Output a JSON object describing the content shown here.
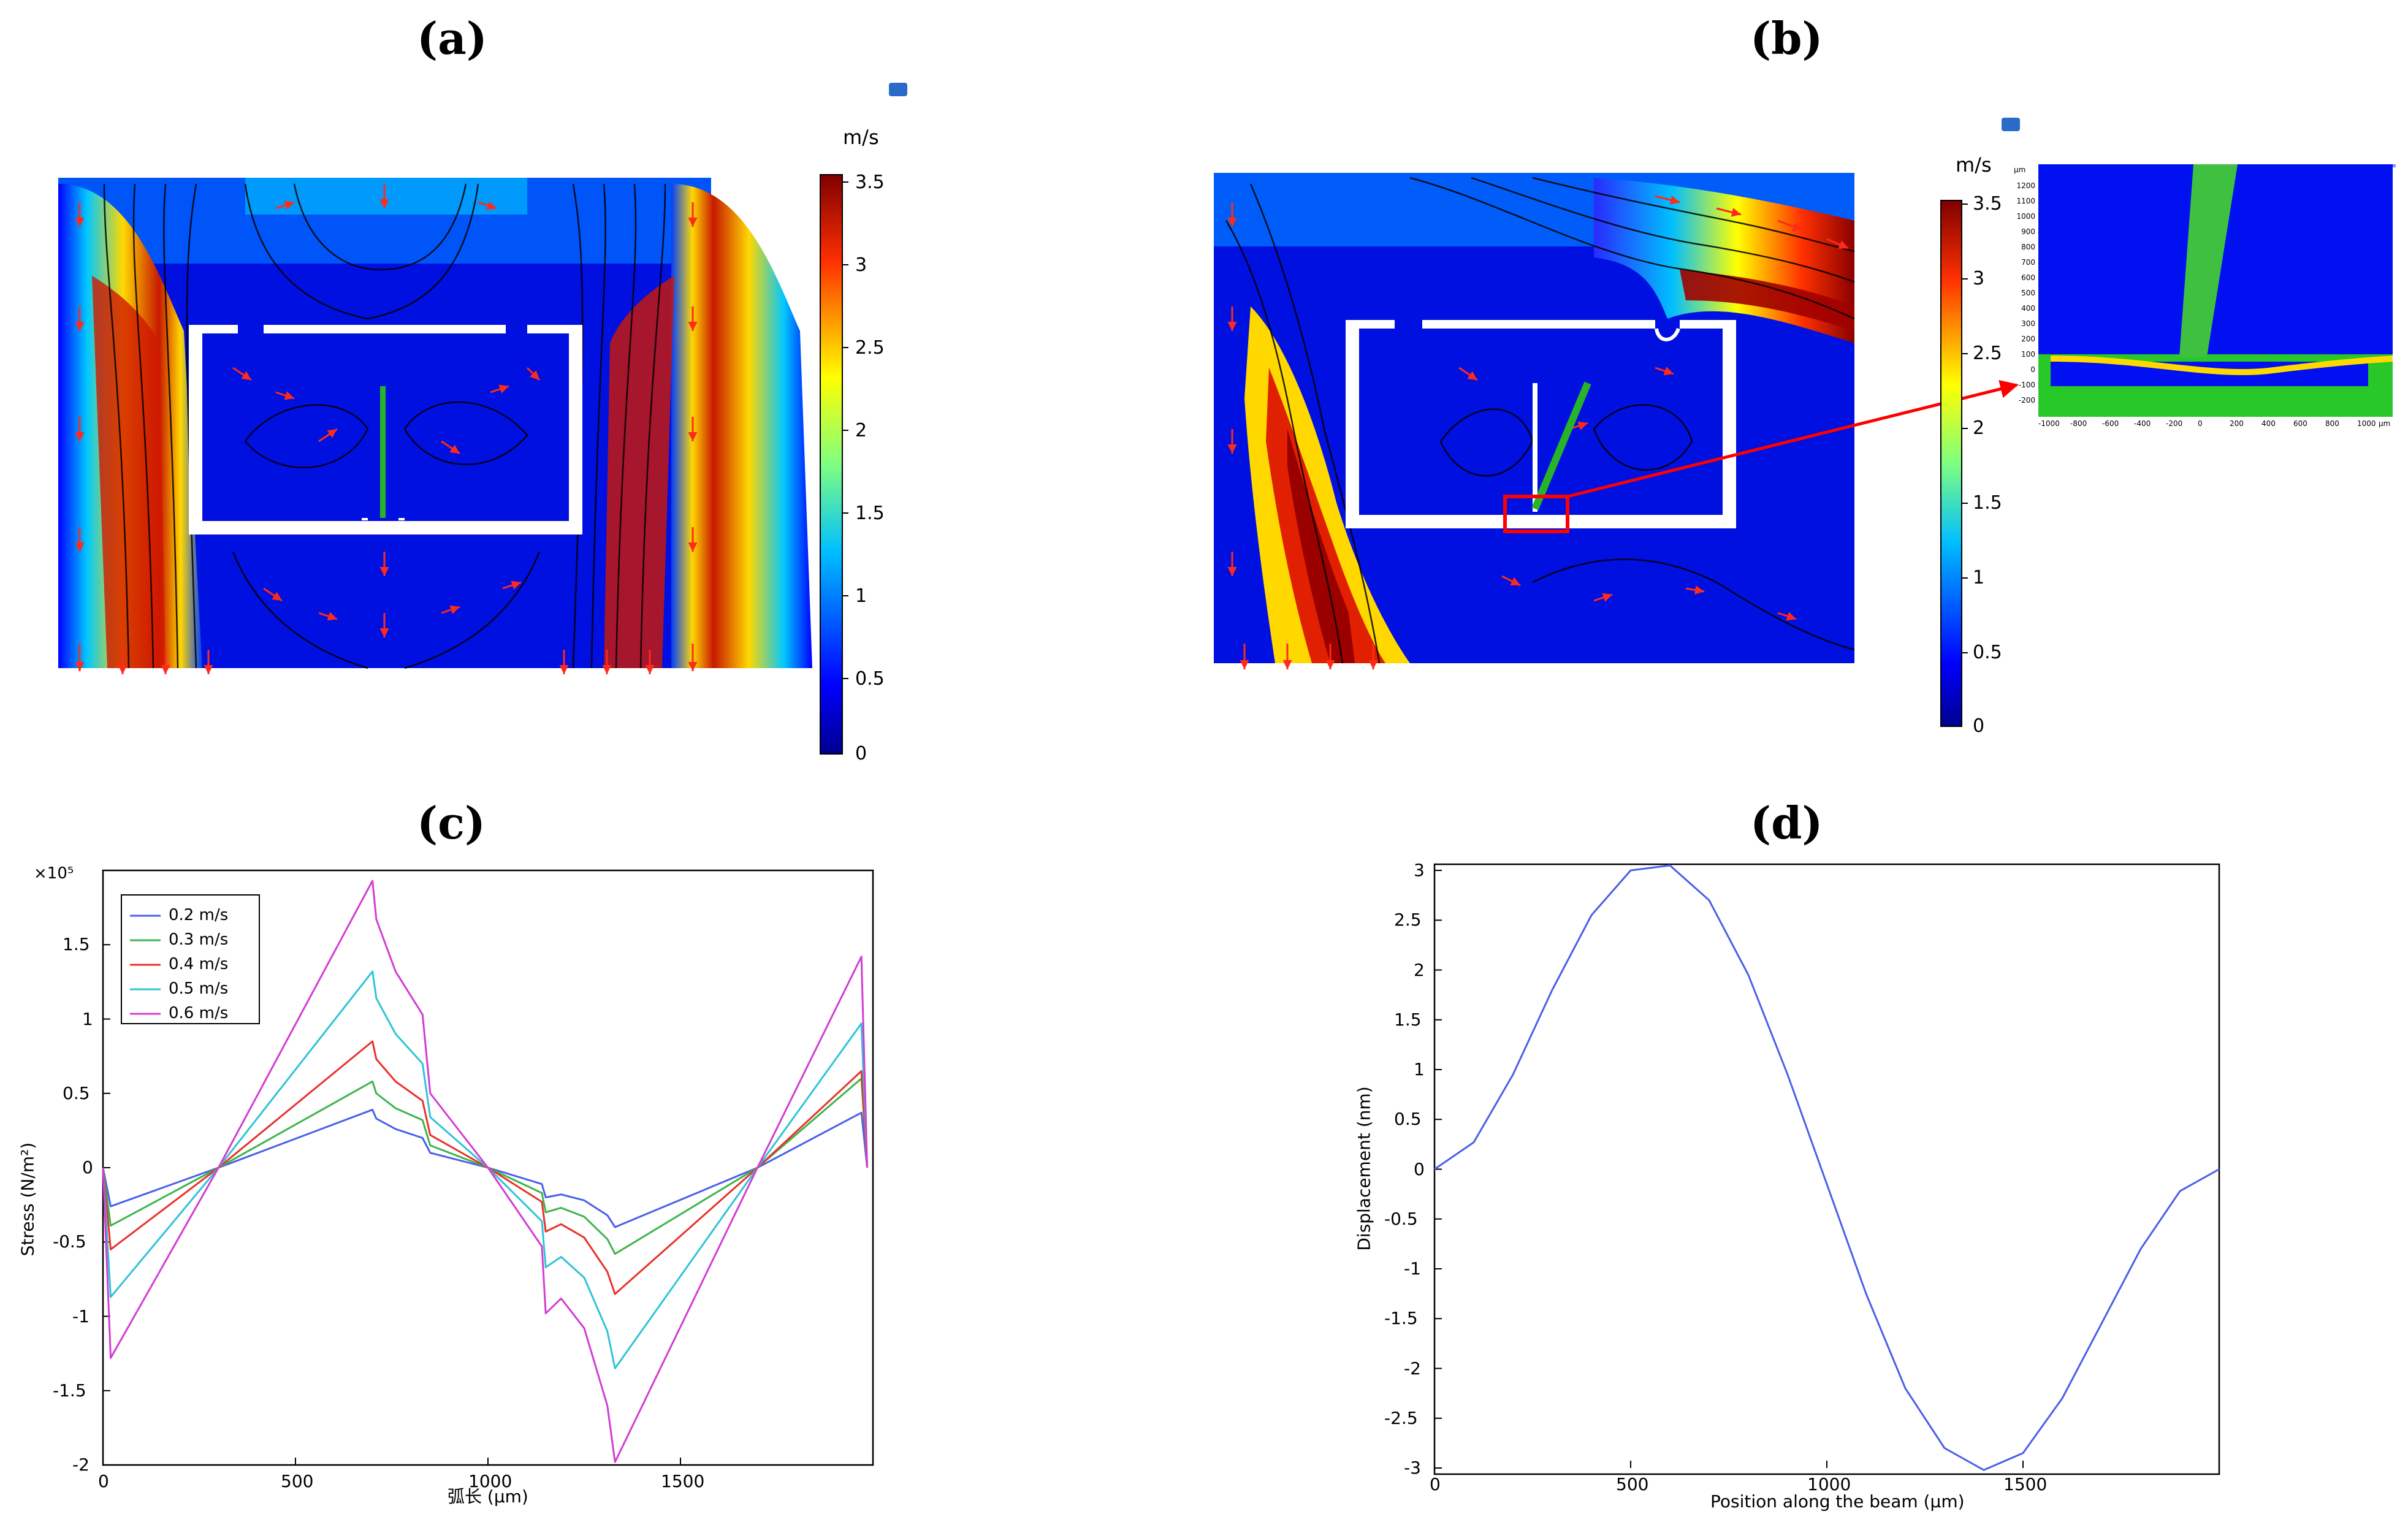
{
  "panels": {
    "a": {
      "label": "(a)"
    },
    "b": {
      "label": "(b)"
    },
    "c": {
      "label": "(c)"
    },
    "d": {
      "label": "(d)"
    }
  },
  "colorbar": {
    "unit": "m/s",
    "ticks": [
      "3.5",
      "3",
      "2.5",
      "2",
      "1.5",
      "1",
      "0.5",
      "0"
    ],
    "min": 0,
    "max": 3.5
  },
  "inset": {
    "unit": "µm",
    "y_ticks": [
      "1200",
      "1100",
      "1000",
      "900",
      "800",
      "700",
      "600",
      "500",
      "400",
      "300",
      "200",
      "100",
      "0",
      "-100",
      "-200"
    ],
    "x_ticks": [
      "-1000",
      "-800",
      "-600",
      "-400",
      "-200",
      "0",
      "200",
      "400",
      "600",
      "800",
      "1000"
    ]
  },
  "colors": {
    "blue": "#4b5fe8",
    "green": "#3cb44b",
    "red": "#e8322b",
    "cyan": "#2ec4d6",
    "magenta": "#d43cd4",
    "arrow": "#ff2a1a",
    "beam": "#28b428"
  },
  "chart_data": [
    {
      "type": "line",
      "title": "",
      "xlabel": "弧长 (µm)",
      "ylabel": "Stress (N/m²)",
      "multiplier": "×10⁵",
      "xlim": [
        0,
        2000
      ],
      "ylim": [
        -2,
        2
      ],
      "x_ticks": [
        0,
        500,
        1000,
        1500
      ],
      "y_ticks": [
        -2,
        -1.5,
        -1,
        -0.5,
        0,
        0.5,
        1,
        1.5
      ],
      "y_tick_labels": [
        "-2",
        "-1.5",
        "-1",
        "-0.5",
        "0",
        "0.5",
        "1",
        "1.5"
      ],
      "legend": "top-left",
      "x": [
        0,
        20,
        300,
        700,
        710,
        760,
        830,
        850,
        1000,
        1140,
        1150,
        1190,
        1250,
        1310,
        1330,
        1700,
        1970,
        1985
      ],
      "series": [
        {
          "name": "0.2 m/s",
          "color_key": "blue",
          "values": [
            0,
            -0.26,
            0,
            0.39,
            0.33,
            0.26,
            0.2,
            0.1,
            0,
            -0.11,
            -0.2,
            -0.18,
            -0.22,
            -0.32,
            -0.4,
            0,
            0.37,
            0
          ]
        },
        {
          "name": "0.3 m/s",
          "color_key": "green",
          "values": [
            0,
            -0.39,
            0,
            0.58,
            0.5,
            0.4,
            0.32,
            0.15,
            0,
            -0.17,
            -0.3,
            -0.27,
            -0.33,
            -0.48,
            -0.58,
            0,
            0.6,
            0
          ]
        },
        {
          "name": "0.4 m/s",
          "color_key": "red",
          "values": [
            0,
            -0.55,
            0,
            0.85,
            0.73,
            0.58,
            0.45,
            0.22,
            0,
            -0.23,
            -0.43,
            -0.38,
            -0.47,
            -0.7,
            -0.85,
            0,
            0.65,
            0
          ]
        },
        {
          "name": "0.5 m/s",
          "color_key": "cyan",
          "values": [
            0,
            -0.87,
            0,
            1.32,
            1.14,
            0.9,
            0.7,
            0.34,
            0,
            -0.36,
            -0.67,
            -0.6,
            -0.74,
            -1.1,
            -1.35,
            0,
            0.97,
            0
          ]
        },
        {
          "name": "0.6 m/s",
          "color_key": "magenta",
          "values": [
            0,
            -1.28,
            0,
            1.93,
            1.67,
            1.32,
            1.03,
            0.5,
            0,
            -0.53,
            -0.98,
            -0.88,
            -1.08,
            -1.6,
            -1.98,
            0,
            1.42,
            0
          ]
        }
      ]
    },
    {
      "type": "line",
      "title": "",
      "xlabel": "Position along the beam (µm)",
      "ylabel": "Displacement (nm)",
      "xlim": [
        0,
        2000
      ],
      "ylim": [
        -3,
        3
      ],
      "x_ticks": [
        0,
        500,
        1000,
        1500
      ],
      "y_ticks": [
        -3,
        -2.5,
        -2,
        -1.5,
        -1,
        -0.5,
        0,
        0.5,
        1,
        1.5,
        2,
        2.5,
        3
      ],
      "y_tick_labels": [
        "-3",
        "-2.5",
        "-2",
        "-1.5",
        "-1",
        "-0.5",
        "0",
        "0.5",
        "1",
        "1.5",
        "2",
        "2.5",
        "3"
      ],
      "legend": "none",
      "x": [
        0,
        100,
        200,
        300,
        400,
        500,
        600,
        700,
        800,
        900,
        1000,
        1100,
        1200,
        1300,
        1400,
        1500,
        1600,
        1700,
        1800,
        1900,
        2000
      ],
      "series": [
        {
          "name": "Displacement",
          "color_key": "blue",
          "values": [
            0,
            0.27,
            0.95,
            1.8,
            2.55,
            3.0,
            3.05,
            2.7,
            1.95,
            0.95,
            -0.15,
            -1.25,
            -2.2,
            -2.8,
            -3.02,
            -2.85,
            -2.3,
            -1.55,
            -0.8,
            -0.22,
            0
          ]
        }
      ]
    }
  ]
}
